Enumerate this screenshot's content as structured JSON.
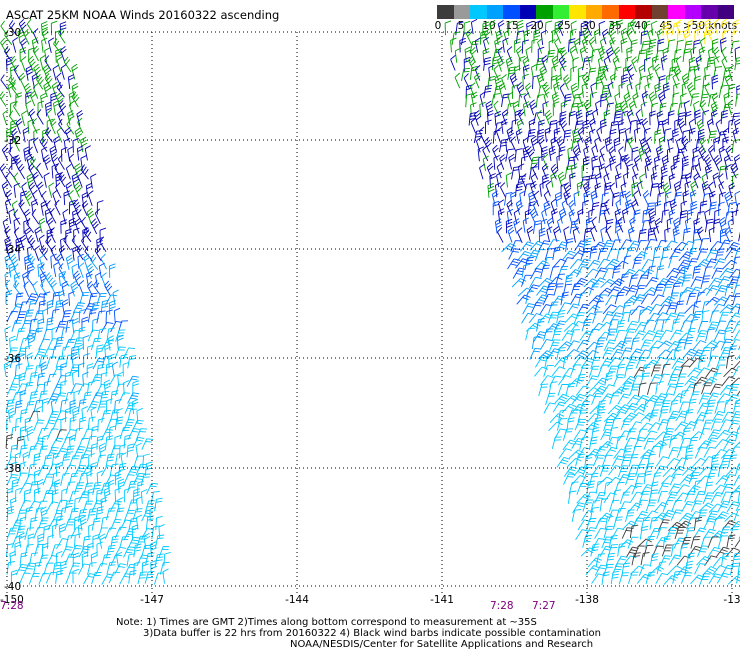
{
  "title": "ASCAT 25KM NOAA Winds 20160322 ascending",
  "legend": {
    "colors": [
      "#3c3c3c",
      "#9a9a9a",
      "#00c8ff",
      "#00a0ff",
      "#0050ff",
      "#0000b4",
      "#00a000",
      "#33ee33",
      "#ffe600",
      "#ffaa00",
      "#ff6a00",
      "#ff0000",
      "#b40000",
      "#704030",
      "#ff00ff",
      "#b400ff",
      "#6600aa",
      "#400080"
    ],
    "labels": [
      "0",
      "5",
      "10",
      "15",
      "20",
      "25",
      "30",
      "35",
      "40",
      "45",
      ">50 knots"
    ],
    "barb_colors": {
      "contaminated": "#000000"
    }
  },
  "axes": {
    "lon_ticks": [
      "-150",
      "-147",
      "-144",
      "-141",
      "-138",
      "-13"
    ],
    "lat_ticks": [
      "-30",
      "-32",
      "-34",
      "-36",
      "-38",
      "-40"
    ]
  },
  "times": [
    "7:28",
    "7:28",
    "7:27"
  ],
  "notes": [
    "Note: 1) Times are GMT 2)Times along bottom correspond to measurement at ~35S",
    "3)Data buffer is 22 hrs from 20160322 4) Black wind barbs indicate possible contamination",
    "NOAA/NESDIS/Center for Satellite Applications and Research"
  ]
}
